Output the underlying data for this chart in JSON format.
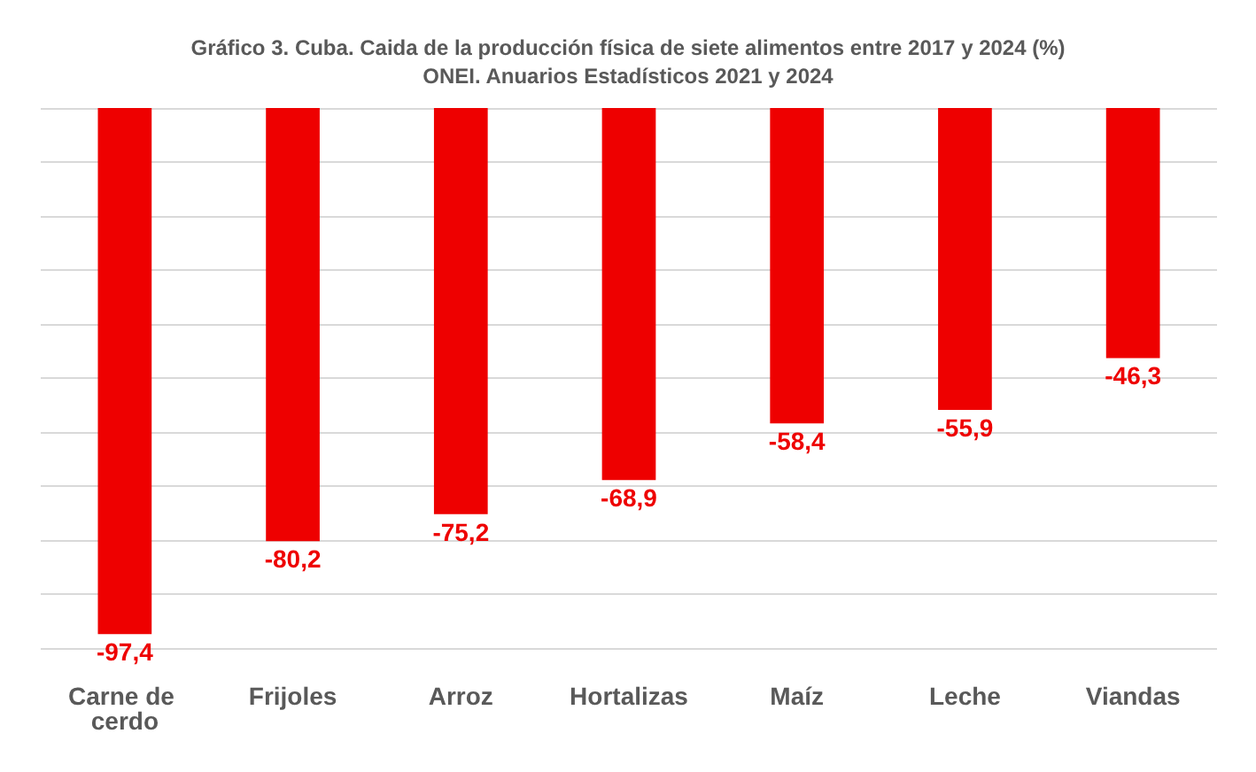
{
  "chart_data": {
    "type": "bar",
    "title": "Gráfico 3. Cuba. Caida de la producción física de siete alimentos entre 2017 y 2024 (%)",
    "subtitle": "ONEI. Anuarios Estadísticos 2021 y 2024",
    "categories": [
      "Carne de cerdo",
      "Frijoles",
      "Arroz",
      "Hortalizas",
      "Maíz",
      "Leche",
      "Viandas"
    ],
    "values": [
      -97.4,
      -80.2,
      -75.2,
      -68.9,
      -58.4,
      -55.9,
      -46.3
    ],
    "value_labels": [
      "-97,4",
      "-80,2",
      "-75,2",
      "-68,9",
      "-58,4",
      "-55,9",
      "-46,3"
    ],
    "color": "#ee0000",
    "ylim": [
      -100,
      0
    ],
    "yticks": [
      {
        "value": -100,
        "label": null
      },
      {
        "value": -90,
        "label": null
      },
      {
        "value": -80,
        "label": null
      },
      {
        "value": -70,
        "label": null
      },
      {
        "value": -60,
        "label": null
      },
      {
        "value": -50,
        "label": null
      },
      {
        "value": -40,
        "label": null
      },
      {
        "value": -30,
        "label": null
      },
      {
        "value": -20,
        "label": null
      },
      {
        "value": -10,
        "label": null
      },
      {
        "value": 0,
        "label": null
      }
    ],
    "grid": true,
    "tick_labels": "x"
  }
}
